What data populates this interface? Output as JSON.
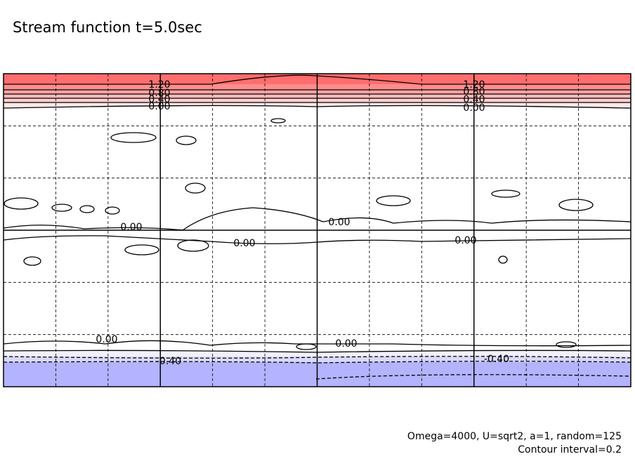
{
  "chart_data": {
    "type": "contour",
    "title": "Stream function t=5.0sec",
    "levels": [
      {
        "value": 1.2,
        "label": "1.20"
      },
      {
        "value": 0.8,
        "label": "0.80"
      },
      {
        "value": 0.4,
        "label": "0.40"
      },
      {
        "value": 0,
        "label": "0.00"
      },
      {
        "value": -0.4,
        "label": "-0.40"
      }
    ],
    "annotations": [
      "Omega=4000, U=sqrt2, a=1, random=125",
      "Contour interval=0.2"
    ],
    "colors": {
      "positive": "#ff6666",
      "negative": "#b3b3ff"
    },
    "grid": true
  }
}
